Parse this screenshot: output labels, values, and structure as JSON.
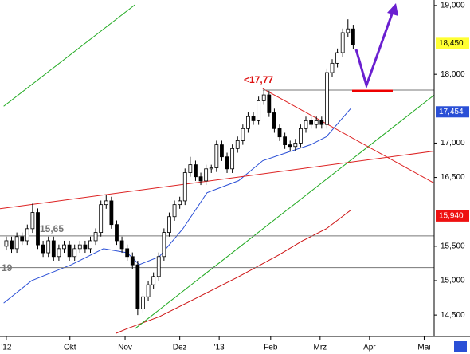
{
  "chart_data": {
    "type": "candlestick",
    "xlim": [
      -1.2,
      81.4
    ],
    "xticks": [
      {
        "value": 0,
        "label": "'12"
      },
      {
        "value": 12.1,
        "label": "Okt"
      },
      {
        "value": 22.6,
        "label": "Nov"
      },
      {
        "value": 33,
        "label": "Dez"
      },
      {
        "value": 40.5,
        "label": "'13"
      },
      {
        "value": 50.3,
        "label": "Feb"
      },
      {
        "value": 59.7,
        "label": "Mrz"
      },
      {
        "value": 69.1,
        "label": "Apr"
      },
      {
        "value": 79.5,
        "label": "Mai"
      }
    ],
    "ylim": [
      14200,
      19080
    ],
    "yticks": [
      {
        "value": 19000,
        "label": "19,000"
      },
      {
        "value": 18000,
        "label": "18,000"
      },
      {
        "value": 17000,
        "label": "17,000"
      },
      {
        "value": 16500,
        "label": "16,500"
      },
      {
        "value": 15500,
        "label": "15,500"
      },
      {
        "value": 15000,
        "label": "15,000"
      },
      {
        "value": 14500,
        "label": "14,500"
      }
    ],
    "candle_color": "#000000",
    "candles": [
      [
        15500,
        15640,
        15440,
        15580
      ],
      [
        15580,
        15640,
        15405,
        15465
      ],
      [
        15465,
        15700,
        15405,
        15640
      ],
      [
        15640,
        15700,
        15520,
        15580
      ],
      [
        15580,
        15815,
        15520,
        15755
      ],
      [
        15755,
        16120,
        15695,
        15990
      ],
      [
        15990,
        16050,
        15460,
        15520
      ],
      [
        15520,
        15580,
        15345,
        15405
      ],
      [
        15405,
        15640,
        15345,
        15580
      ],
      [
        15580,
        15640,
        15290,
        15350
      ],
      [
        15350,
        15525,
        15290,
        15465
      ],
      [
        15465,
        15580,
        15405,
        15520
      ],
      [
        15520,
        15580,
        15290,
        15350
      ],
      [
        15350,
        15525,
        15290,
        15465
      ],
      [
        15465,
        15580,
        15405,
        15520
      ],
      [
        15520,
        15580,
        15405,
        15465
      ],
      [
        15465,
        15640,
        15405,
        15580
      ],
      [
        15580,
        15760,
        15520,
        15700
      ],
      [
        15700,
        16165,
        15640,
        16105
      ],
      [
        16105,
        16250,
        16045,
        16160
      ],
      [
        16160,
        16220,
        15755,
        15815
      ],
      [
        15815,
        15875,
        15520,
        15580
      ],
      [
        15580,
        15640,
        15405,
        15465
      ],
      [
        15465,
        15525,
        15290,
        15350
      ],
      [
        15350,
        15410,
        15170,
        15230
      ],
      [
        15230,
        15290,
        14500,
        14590
      ],
      [
        14590,
        14825,
        14530,
        14765
      ],
      [
        14765,
        15000,
        14705,
        14940
      ],
      [
        14940,
        15120,
        14880,
        15060
      ],
      [
        15060,
        15410,
        15000,
        15350
      ],
      [
        15350,
        15760,
        15290,
        15700
      ],
      [
        15700,
        15990,
        15640,
        15930
      ],
      [
        15930,
        16165,
        15870,
        16105
      ],
      [
        16105,
        16220,
        16045,
        16160
      ],
      [
        16160,
        16630,
        16100,
        16570
      ],
      [
        16570,
        16800,
        16510,
        16685
      ],
      [
        16685,
        16745,
        16450,
        16510
      ],
      [
        16510,
        16570,
        16390,
        16450
      ],
      [
        16450,
        16685,
        16390,
        16625
      ],
      [
        16625,
        16685,
        16565,
        16640
      ],
      [
        16640,
        17035,
        16580,
        16975
      ],
      [
        16975,
        17035,
        16740,
        16800
      ],
      [
        16800,
        16860,
        16565,
        16625
      ],
      [
        16625,
        16980,
        16565,
        16920
      ],
      [
        16920,
        17095,
        16860,
        17035
      ],
      [
        17035,
        17270,
        16975,
        17210
      ],
      [
        17210,
        17445,
        17150,
        17385
      ],
      [
        17385,
        17445,
        17265,
        17325
      ],
      [
        17325,
        17675,
        17265,
        17615
      ],
      [
        17615,
        17770,
        17555,
        17700
      ],
      [
        17700,
        17760,
        17380,
        17440
      ],
      [
        17440,
        17500,
        17150,
        17210
      ],
      [
        17210,
        17270,
        17030,
        17090
      ],
      [
        17090,
        17150,
        16915,
        16975
      ],
      [
        16975,
        17035,
        16890,
        16950
      ],
      [
        16950,
        17060,
        16890,
        17000
      ],
      [
        17000,
        17270,
        16940,
        17210
      ],
      [
        17210,
        17385,
        17150,
        17325
      ],
      [
        17325,
        17385,
        17210,
        17270
      ],
      [
        17270,
        17385,
        17210,
        17325
      ],
      [
        17325,
        17385,
        17210,
        17270
      ],
      [
        17270,
        18085,
        17210,
        18025
      ],
      [
        18025,
        18220,
        17965,
        18160
      ],
      [
        18160,
        18375,
        18100,
        18315
      ],
      [
        18315,
        18665,
        18255,
        18605
      ],
      [
        18605,
        18800,
        18545,
        18660
      ],
      [
        18660,
        18720,
        18370,
        18430
      ]
    ],
    "lines": [
      {
        "color": "#2a4fd6",
        "x": [
          -0.5,
          4.8,
          12.4,
          18.5,
          23,
          25.3,
          29.1,
          33.6,
          38.2,
          44.2,
          48.8,
          53.3,
          57.9,
          60.9,
          65.5
        ],
        "values": [
          14674,
          14999,
          15232,
          15465,
          15406,
          15232,
          15348,
          15755,
          16279,
          16453,
          16744,
          16860,
          16976,
          17093,
          17500
        ]
      },
      {
        "color": "#cc1111",
        "x": [
          20.8,
          23,
          29.1,
          36.7,
          44.2,
          51.8,
          56.4,
          60.9,
          65.5
        ],
        "values": [
          14232,
          14302,
          14476,
          14767,
          15057,
          15371,
          15581,
          15755,
          16023
        ]
      },
      {
        "color": "#22aa22",
        "x": [
          -0.5,
          24.5
        ],
        "values": [
          17535,
          19012
        ]
      },
      {
        "color": "#22aa22",
        "x": [
          24.5,
          81.4
        ],
        "values": [
          14302,
          17698
        ]
      },
      {
        "color": "#dd2222",
        "x": [
          -1.2,
          81.4
        ],
        "values": [
          16046,
          16883
        ]
      },
      {
        "color": "#dd2222",
        "x": [
          48.8,
          81.4
        ],
        "values": [
          17791,
          16418
        ]
      },
      {
        "color": "#777777",
        "x": [
          48.8,
          81.4
        ],
        "values": [
          17770,
          17770
        ]
      },
      {
        "color": "#777777",
        "x": [
          -1.2,
          81.4
        ],
        "values": [
          15650,
          15650
        ]
      },
      {
        "color": "#777777",
        "x": [
          -1.2,
          81.4
        ],
        "values": [
          15190,
          15190
        ]
      }
    ],
    "price_labels": [
      {
        "value": 18450,
        "label": "18,450",
        "color": "#ffff33",
        "text_color": "#000000"
      },
      {
        "value": 17454,
        "label": "17,454",
        "color": "#2a4fd6",
        "text_color": "#ffffff"
      },
      {
        "value": 15940,
        "label": "15,940",
        "color": "#ee1111",
        "text_color": "#ffffff"
      }
    ],
    "annotations": [
      "<17,77",
      "15,65",
      "19"
    ]
  }
}
